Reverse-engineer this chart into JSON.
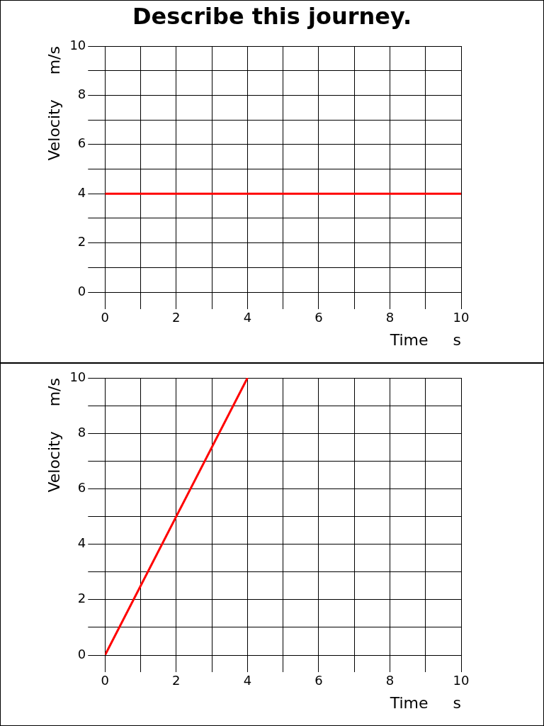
{
  "chart_data": [
    {
      "type": "line",
      "title": "Describe this journey.",
      "xlabel": "Time     s",
      "ylabel": "Velocity     m/s",
      "x": [
        0,
        10
      ],
      "series": [
        {
          "color": "#ff0000",
          "values": [
            4,
            4
          ]
        }
      ],
      "xlim": [
        0,
        10
      ],
      "ylim": [
        0,
        10
      ],
      "xticks": [
        0,
        {
          "value": 1,
          "label": null
        },
        2,
        {
          "value": 3,
          "label": null
        },
        4,
        {
          "value": 5,
          "label": null
        },
        6,
        {
          "value": 7,
          "label": null
        },
        8,
        {
          "value": 9,
          "label": null
        },
        10
      ],
      "yticks": [
        0,
        {
          "value": 1,
          "label": null
        },
        2,
        {
          "value": 3,
          "label": null
        },
        4,
        {
          "value": 5,
          "label": null
        },
        6,
        {
          "value": 7,
          "label": null
        },
        8,
        {
          "value": 9,
          "label": null
        },
        10
      ],
      "grid": true,
      "legend": false,
      "marker": "none",
      "line_style": "solid"
    },
    {
      "type": "line",
      "xlabel": "Time     s",
      "ylabel": "Velocity     m/s",
      "x": [
        0,
        4
      ],
      "series": [
        {
          "color": "#ff0000",
          "values": [
            0,
            10
          ]
        }
      ],
      "xlim": [
        0,
        10
      ],
      "ylim": [
        0,
        10
      ],
      "xticks": [
        0,
        {
          "value": 1,
          "label": null
        },
        2,
        {
          "value": 3,
          "label": null
        },
        4,
        {
          "value": 5,
          "label": null
        },
        6,
        {
          "value": 7,
          "label": null
        },
        8,
        {
          "value": 9,
          "label": null
        },
        10
      ],
      "yticks": [
        0,
        {
          "value": 1,
          "label": null
        },
        2,
        {
          "value": 3,
          "label": null
        },
        4,
        {
          "value": 5,
          "label": null
        },
        6,
        {
          "value": 7,
          "label": null
        },
        8,
        {
          "value": 9,
          "label": null
        },
        10
      ],
      "grid": true,
      "legend": false,
      "marker": "none",
      "line_style": "solid"
    }
  ]
}
